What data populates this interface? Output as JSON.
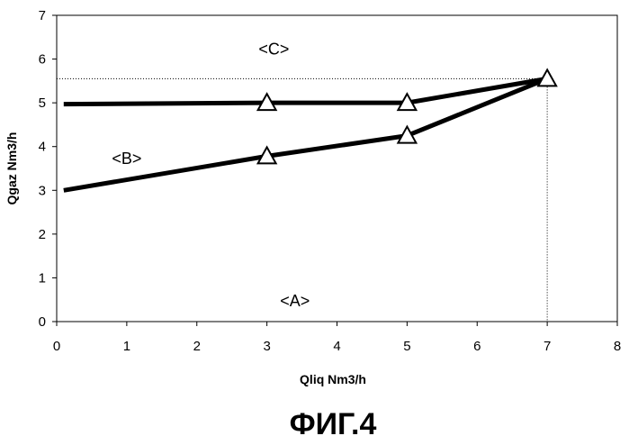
{
  "figure_label": "ФИГ.4",
  "chart_data": {
    "type": "line",
    "xlabel": "Qliq Nm3/h",
    "ylabel": "Qgaz Nm3/h",
    "xlim": [
      0,
      8
    ],
    "ylim": [
      0,
      7
    ],
    "x_ticks": [
      "0",
      "1",
      "2",
      "3",
      "4",
      "5",
      "6",
      "7",
      "8"
    ],
    "y_ticks": [
      "0",
      "1",
      "2",
      "3",
      "4",
      "5",
      "6",
      "7"
    ],
    "grid": false,
    "series": [
      {
        "points": [
          {
            "x": 0.1,
            "y": 4.97
          },
          {
            "x": 3,
            "y": 5.0
          },
          {
            "x": 5,
            "y": 5.0
          },
          {
            "x": 7,
            "y": 5.55
          }
        ],
        "markers": [
          {
            "x": 3,
            "y": 5.0
          },
          {
            "x": 5,
            "y": 5.0
          },
          {
            "x": 7,
            "y": 5.55
          }
        ]
      },
      {
        "points": [
          {
            "x": 0.1,
            "y": 3.0
          },
          {
            "x": 3,
            "y": 3.78
          },
          {
            "x": 5,
            "y": 4.25
          },
          {
            "x": 7,
            "y": 5.55
          }
        ],
        "markers": [
          {
            "x": 3,
            "y": 3.78
          },
          {
            "x": 5,
            "y": 4.25
          }
        ]
      }
    ],
    "reference_lines": {
      "x": 7,
      "y": 5.55
    },
    "annotations": [
      {
        "text": "<C>",
        "x": 3.1,
        "y": 6.1
      },
      {
        "text": "<B>",
        "x": 1.0,
        "y": 3.6
      },
      {
        "text": "<A>",
        "x": 3.4,
        "y": 0.35
      }
    ]
  }
}
